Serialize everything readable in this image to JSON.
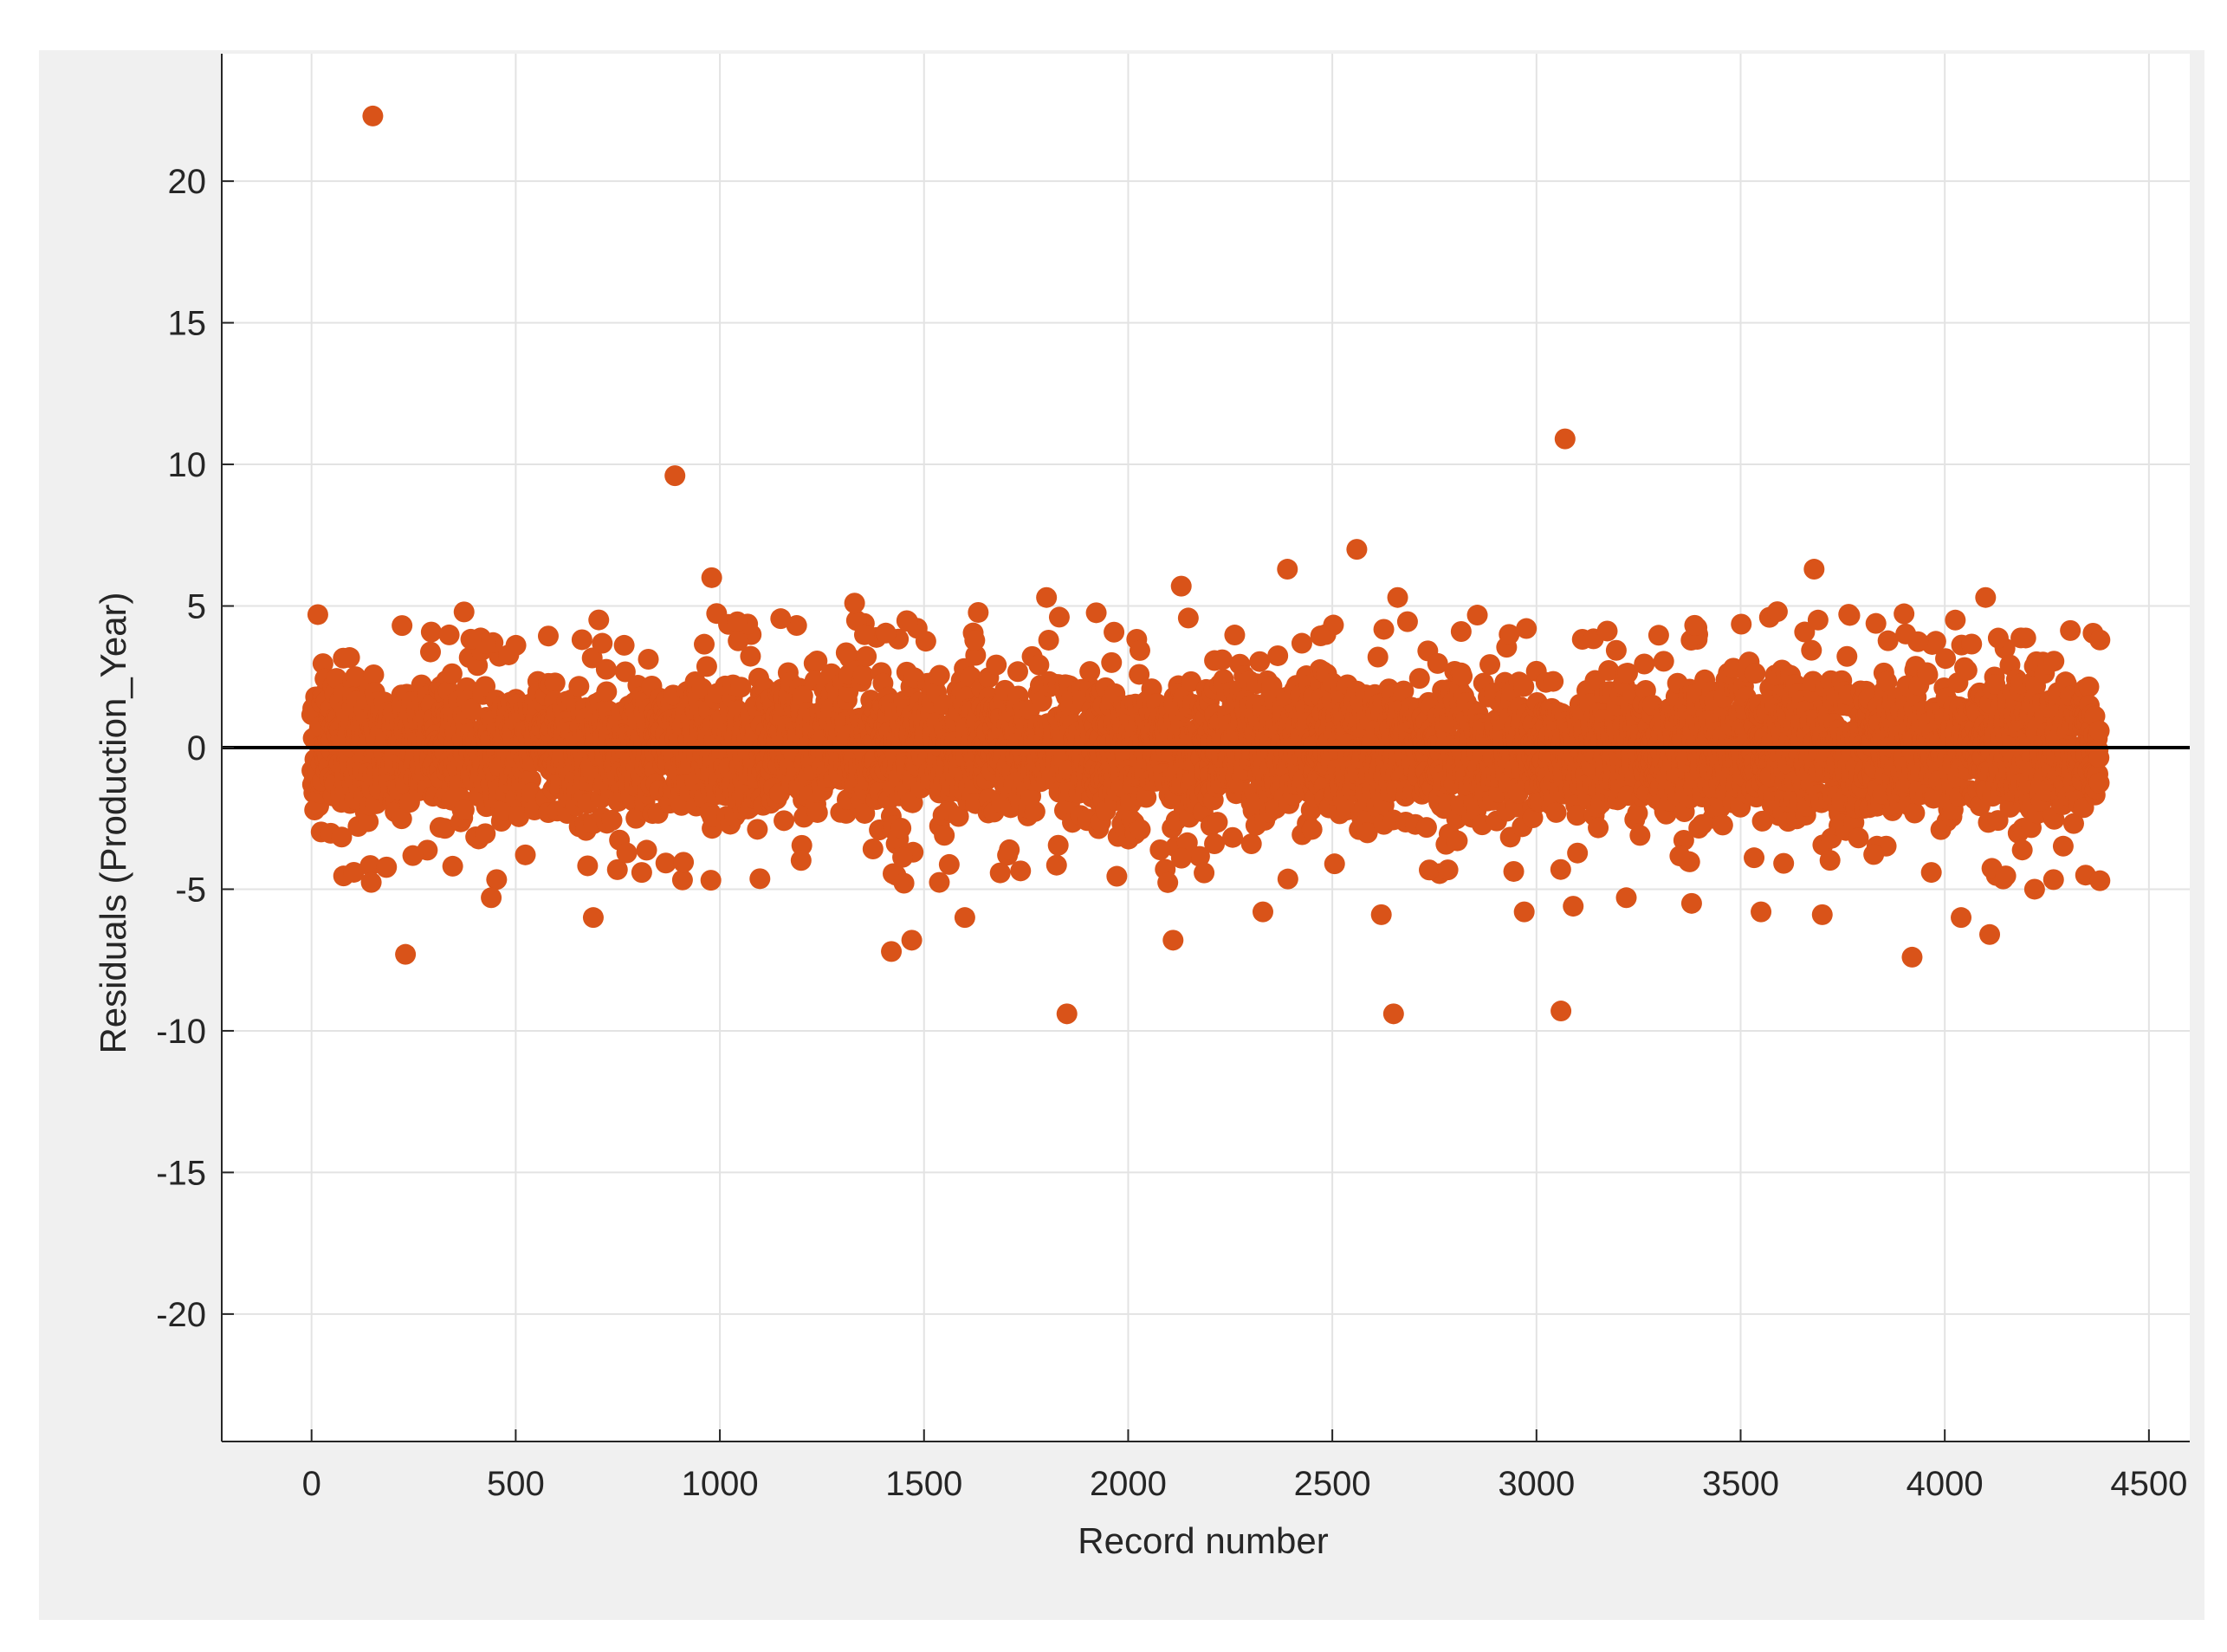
{
  "chart_data": {
    "type": "scatter",
    "title": "",
    "xlabel": "Record number",
    "ylabel": "Residuals (Production_Year)",
    "xlim": [
      -220,
      4600
    ],
    "ylim": [
      -24.5,
      24.5
    ],
    "xticks": [
      0,
      500,
      1000,
      1500,
      2000,
      2500,
      3000,
      3500,
      4000,
      4500
    ],
    "yticks": [
      -20,
      -15,
      -10,
      -5,
      0,
      5,
      10,
      15,
      20
    ],
    "grid": true,
    "reference_line": {
      "y": 0,
      "color": "#000000"
    },
    "colors": {
      "marker": "#D95319",
      "axes_background": "#FFFFFF",
      "figure_background": "#F0F0F0",
      "grid": "#E3E3E3"
    },
    "series": [
      {
        "n_points": 4380,
        "typical_range": [
          -3.5,
          4
        ],
        "notable_points": [
          {
            "x": 150,
            "y": 22.3
          },
          {
            "x": 890,
            "y": 9.6
          },
          {
            "x": 980,
            "y": 6.0
          },
          {
            "x": 1330,
            "y": 5.1
          },
          {
            "x": 1800,
            "y": 5.3
          },
          {
            "x": 2130,
            "y": 5.7
          },
          {
            "x": 2390,
            "y": 6.3
          },
          {
            "x": 2560,
            "y": 7.0
          },
          {
            "x": 2660,
            "y": 5.3
          },
          {
            "x": 3070,
            "y": 10.9
          },
          {
            "x": 3680,
            "y": 6.3
          },
          {
            "x": 3590,
            "y": 4.8
          },
          {
            "x": 4100,
            "y": 5.3
          },
          {
            "x": 230,
            "y": -7.3
          },
          {
            "x": 440,
            "y": -5.3
          },
          {
            "x": 690,
            "y": -6.0
          },
          {
            "x": 1420,
            "y": -7.2
          },
          {
            "x": 1470,
            "y": -6.8
          },
          {
            "x": 1600,
            "y": -6.0
          },
          {
            "x": 1850,
            "y": -9.4
          },
          {
            "x": 2110,
            "y": -6.8
          },
          {
            "x": 2330,
            "y": -5.8
          },
          {
            "x": 2620,
            "y": -5.9
          },
          {
            "x": 2650,
            "y": -9.4
          },
          {
            "x": 2970,
            "y": -5.8
          },
          {
            "x": 3060,
            "y": -9.3
          },
          {
            "x": 3090,
            "y": -5.6
          },
          {
            "x": 3220,
            "y": -5.3
          },
          {
            "x": 3380,
            "y": -5.5
          },
          {
            "x": 3550,
            "y": -5.8
          },
          {
            "x": 3700,
            "y": -5.9
          },
          {
            "x": 3920,
            "y": -7.4
          },
          {
            "x": 4040,
            "y": -6.0
          },
          {
            "x": 4110,
            "y": -6.6
          },
          {
            "x": 4220,
            "y": -5.0
          },
          {
            "x": 4380,
            "y": -4.7
          },
          {
            "x": 4380,
            "y": 3.8
          }
        ]
      }
    ]
  }
}
